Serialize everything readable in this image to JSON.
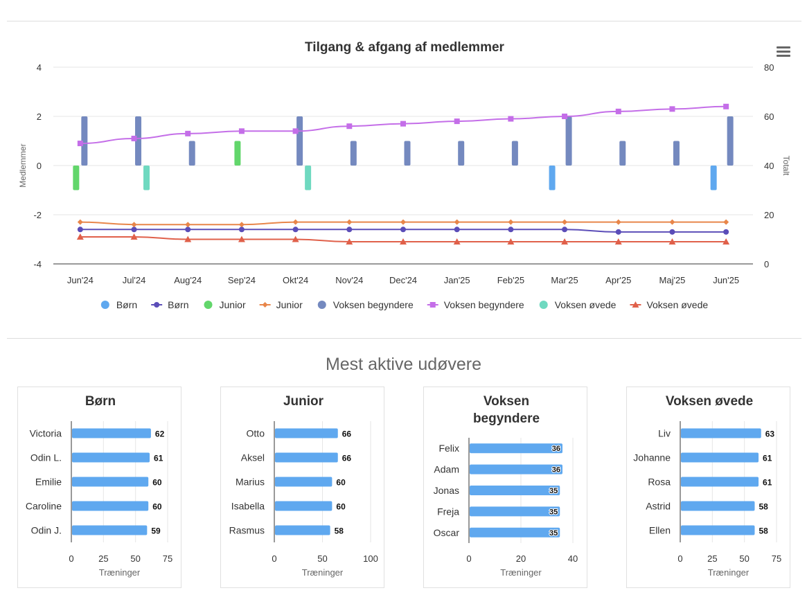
{
  "main_chart_data": {
    "type": "bar",
    "title": "Tilgang & afgang af medlemmer",
    "categories": [
      "Jun'24",
      "Jul'24",
      "Aug'24",
      "Sep'24",
      "Okt'24",
      "Nov'24",
      "Dec'24",
      "Jan'25",
      "Feb'25",
      "Mar'25",
      "Apr'25",
      "Maj'25",
      "Jun'25"
    ],
    "ylabel": "Medlemmer",
    "y2label": "Totalt",
    "ylim": [
      -4,
      4
    ],
    "y_ticks": [
      -4,
      -2,
      0,
      2,
      4
    ],
    "y2lim": [
      0,
      80
    ],
    "y2_ticks": [
      0,
      20,
      40,
      60,
      80
    ],
    "grid": true,
    "legend_position": "bottom",
    "series": [
      {
        "name": "Børn",
        "type": "bar",
        "axis": "left",
        "color": "#5fa8ef",
        "values": [
          0,
          0,
          0,
          0,
          0,
          0,
          0,
          0,
          0,
          -1,
          0,
          0,
          -1
        ]
      },
      {
        "name": "Børn",
        "type": "line",
        "axis": "right",
        "color": "#5b4db8",
        "marker": "circle",
        "values": [
          14,
          14,
          14,
          14,
          14,
          14,
          14,
          14,
          14,
          14,
          13,
          13,
          13
        ]
      },
      {
        "name": "Junior",
        "type": "bar",
        "axis": "left",
        "color": "#62d66b",
        "values": [
          -1,
          0,
          0,
          1,
          0,
          0,
          0,
          0,
          0,
          0,
          0,
          0,
          0
        ]
      },
      {
        "name": "Junior",
        "type": "line",
        "axis": "right",
        "color": "#e8864a",
        "marker": "diamond",
        "values": [
          17,
          16,
          16,
          16,
          17,
          17,
          17,
          17,
          17,
          17,
          17,
          17,
          17
        ]
      },
      {
        "name": "Voksen begyndere",
        "type": "bar",
        "axis": "left",
        "color": "#7489bf",
        "values": [
          2,
          2,
          1,
          0,
          2,
          1,
          1,
          1,
          1,
          2,
          1,
          1,
          2
        ]
      },
      {
        "name": "Voksen begyndere",
        "type": "line",
        "axis": "right",
        "color": "#c46ee8",
        "marker": "square",
        "values": [
          49,
          51,
          53,
          54,
          54,
          56,
          57,
          58,
          59,
          60,
          62,
          63,
          64
        ]
      },
      {
        "name": "Voksen øvede",
        "type": "bar",
        "axis": "left",
        "color": "#6fd9c0",
        "values": [
          0,
          -1,
          0,
          0,
          -1,
          0,
          0,
          0,
          0,
          0,
          0,
          0,
          0
        ]
      },
      {
        "name": "Voksen øvede",
        "type": "line",
        "axis": "right",
        "color": "#e0604a",
        "marker": "triangle",
        "values": [
          11,
          11,
          10,
          10,
          10,
          9,
          9,
          9,
          9,
          9,
          9,
          9,
          9
        ]
      }
    ]
  },
  "section_title": "Mest aktive udøvere",
  "chart_data": [
    {
      "type": "bar",
      "orientation": "horizontal",
      "title": [
        "Børn"
      ],
      "categories": [
        "Victoria",
        "Odin L.",
        "Emilie",
        "Caroline",
        "Odin J."
      ],
      "values": [
        62,
        61,
        60,
        60,
        59
      ],
      "xlabel": "Træninger",
      "xlim": [
        0,
        75
      ],
      "x_ticks": [
        0,
        25,
        50,
        75
      ],
      "color": "#5fa8ef"
    },
    {
      "type": "bar",
      "orientation": "horizontal",
      "title": [
        "Junior"
      ],
      "categories": [
        "Otto",
        "Aksel",
        "Marius",
        "Isabella",
        "Rasmus"
      ],
      "values": [
        66,
        66,
        60,
        60,
        58
      ],
      "xlabel": "Træninger",
      "xlim": [
        0,
        100
      ],
      "x_ticks": [
        0,
        50,
        100
      ],
      "color": "#5fa8ef"
    },
    {
      "type": "bar",
      "orientation": "horizontal",
      "title": [
        "Voksen",
        "begyndere"
      ],
      "categories": [
        "Felix",
        "Adam",
        "Jonas",
        "Freja",
        "Oscar"
      ],
      "values": [
        36,
        36,
        35,
        35,
        35
      ],
      "xlabel": "Træninger",
      "xlim": [
        0,
        40
      ],
      "x_ticks": [
        0,
        20,
        40
      ],
      "color": "#5fa8ef",
      "labels_inside": true
    },
    {
      "type": "bar",
      "orientation": "horizontal",
      "title": [
        "Voksen øvede"
      ],
      "categories": [
        "Liv",
        "Johanne",
        "Rosa",
        "Astrid",
        "Ellen"
      ],
      "values": [
        63,
        61,
        61,
        58,
        58
      ],
      "xlabel": "Træninger",
      "xlim": [
        0,
        75
      ],
      "x_ticks": [
        0,
        25,
        50,
        75
      ],
      "color": "#5fa8ef"
    }
  ]
}
